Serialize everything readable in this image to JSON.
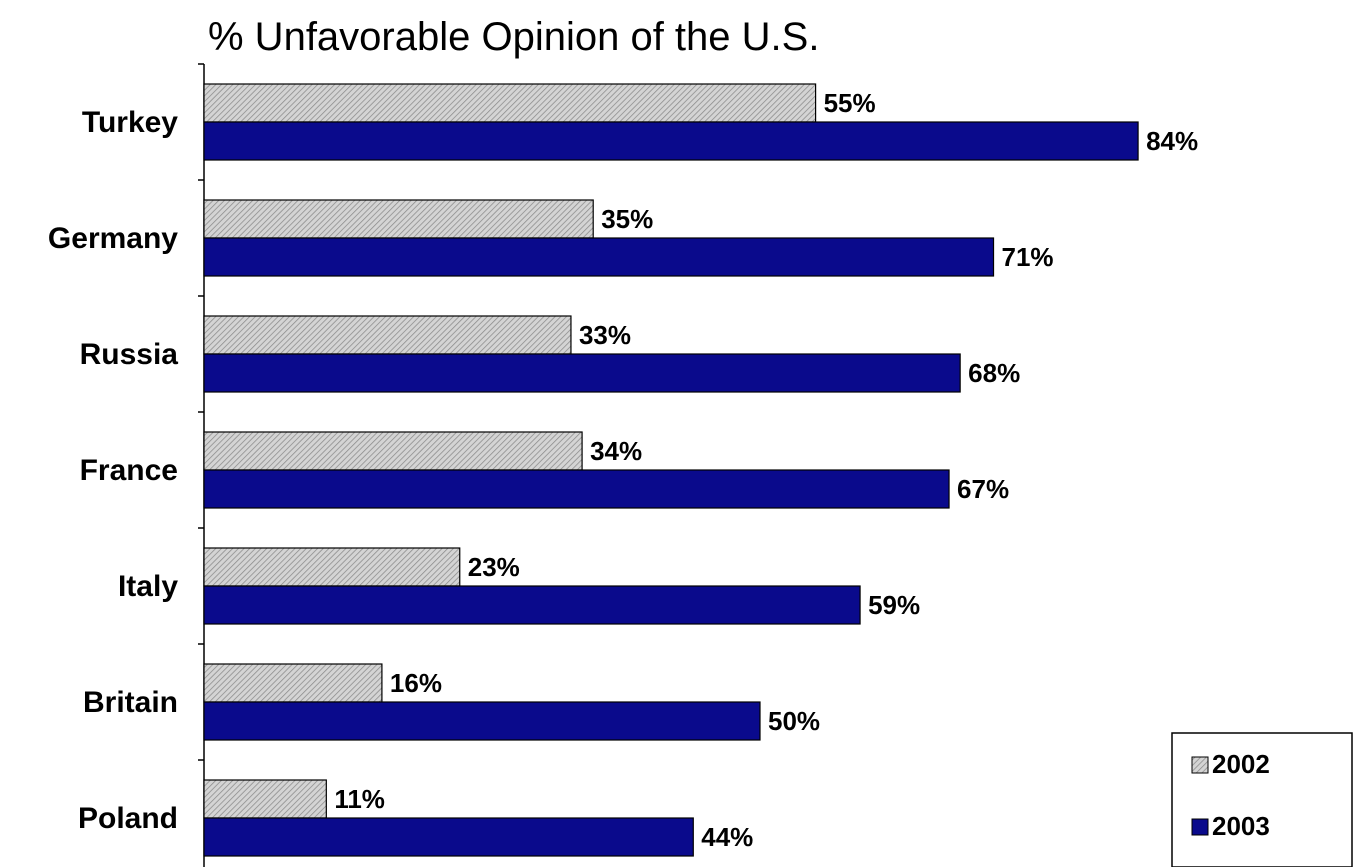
{
  "colors": {
    "series_2002": "#d4d4d4",
    "series_2002_hatch": "#8a8a8a",
    "series_2003": "#0a0a8c",
    "outline": "#000000"
  },
  "chart_data": {
    "type": "bar",
    "orientation": "horizontal",
    "title": "% Unfavorable Opinion of the U.S.",
    "xlabel": "",
    "ylabel": "",
    "xlim": [
      0,
      100
    ],
    "grid": false,
    "legend_position": "bottom-right",
    "categories": [
      "Turkey",
      "Germany",
      "Russia",
      "France",
      "Italy",
      "Britain",
      "Poland"
    ],
    "series": [
      {
        "name": "2002",
        "values": [
          55,
          35,
          33,
          34,
          23,
          16,
          11
        ],
        "labels": [
          "55%",
          "35%",
          "33%",
          "34%",
          "23%",
          "16%",
          "11%"
        ]
      },
      {
        "name": "2003",
        "values": [
          84,
          71,
          68,
          67,
          59,
          50,
          44
        ],
        "labels": [
          "84%",
          "71%",
          "68%",
          "67%",
          "59%",
          "50%",
          "44%"
        ]
      }
    ]
  }
}
